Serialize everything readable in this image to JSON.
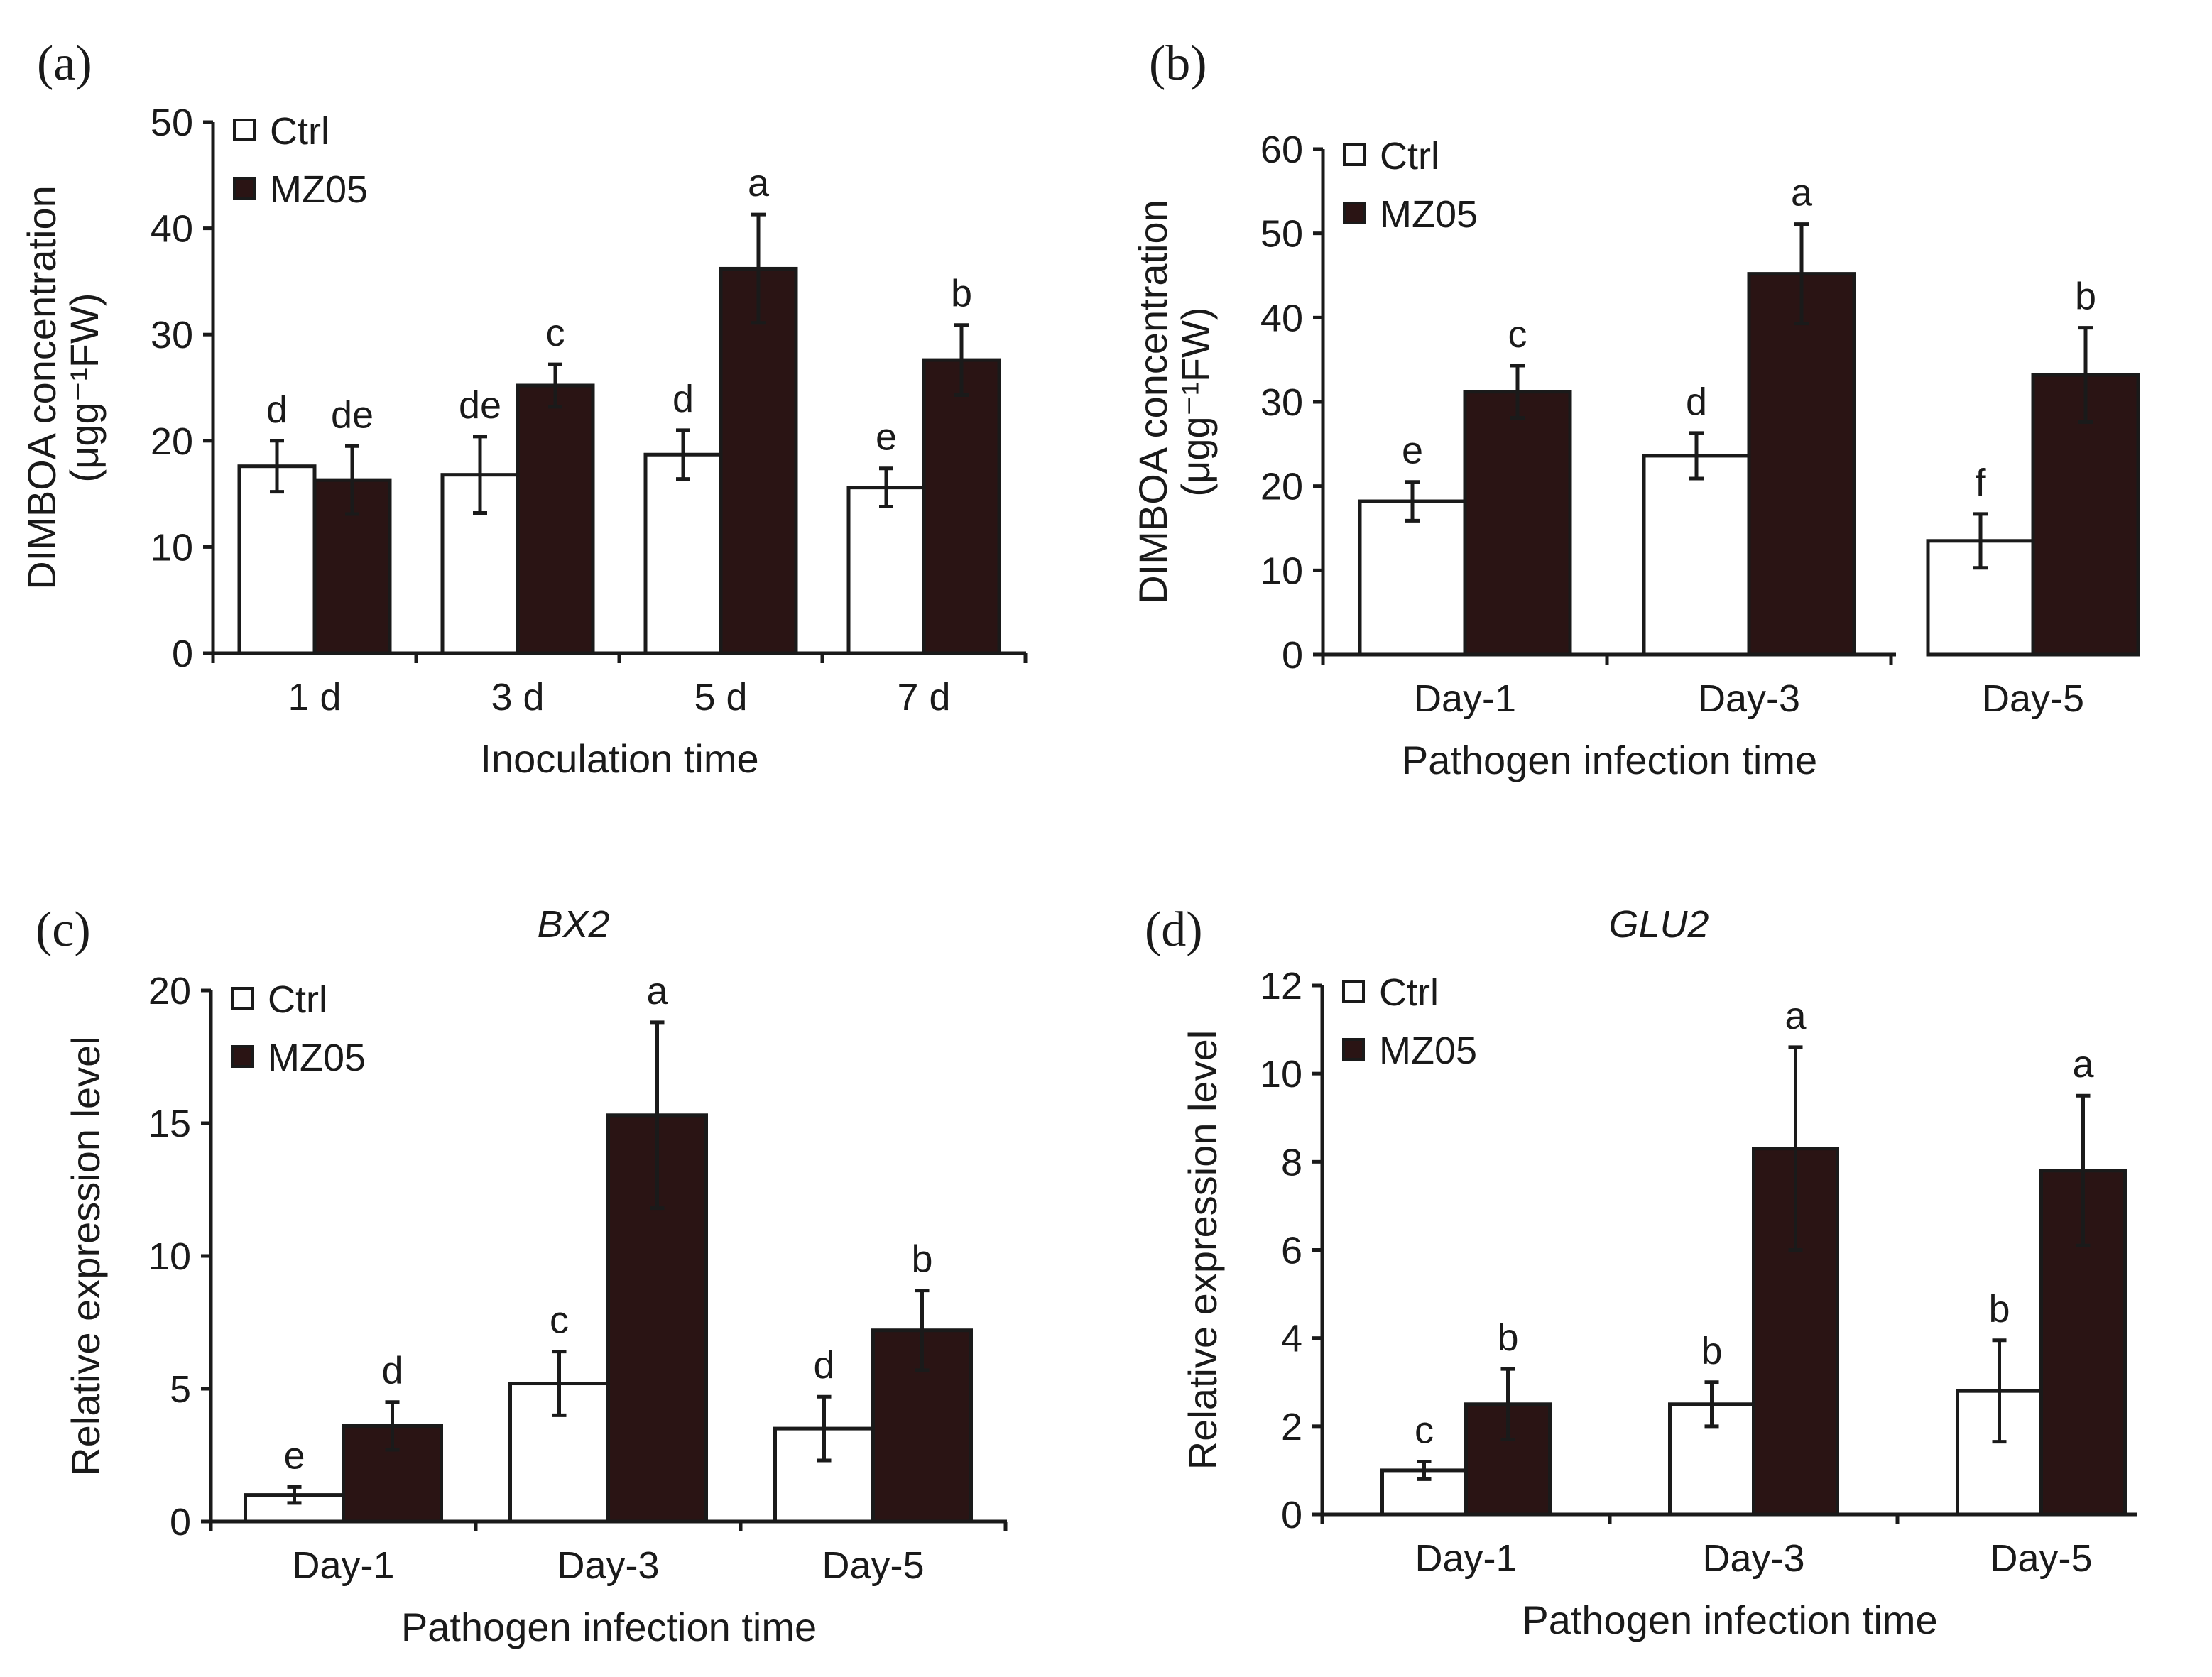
{
  "colors": {
    "ctrl": "#ffffff",
    "mz05": "#2a1414",
    "ink": "#1a1a1a"
  },
  "chart_data": [
    {
      "type": "bar",
      "panel_label": "(a)",
      "title": "",
      "ylabel_line1": "DIMBOA concentration",
      "ylabel_line2": "(μgg⁻¹FW)",
      "xlabel": "Inoculation time",
      "categories": [
        "1 d",
        "3 d",
        "5 d",
        "7 d"
      ],
      "ylim": [
        0,
        50
      ],
      "yticks": [
        0,
        10,
        20,
        30,
        40,
        50
      ],
      "legend_position": "top-left",
      "series": [
        {
          "name": "Ctrl",
          "key": "ctrl",
          "values": [
            17.6,
            16.8,
            18.7,
            15.6
          ],
          "errors": [
            2.4,
            3.6,
            2.3,
            1.8
          ],
          "letters": [
            "d",
            "de",
            "d",
            "e"
          ]
        },
        {
          "name": "MZ05",
          "key": "mz05",
          "values": [
            16.3,
            25.2,
            36.2,
            27.6
          ],
          "errors": [
            3.2,
            2.0,
            5.1,
            3.3
          ],
          "letters": [
            "de",
            "c",
            "a",
            "b"
          ]
        }
      ]
    },
    {
      "type": "bar",
      "panel_label": "(b)",
      "title": "",
      "ylabel_line1": "DIMBOA concentration",
      "ylabel_line2": "(μgg⁻¹FW)",
      "xlabel": "Pathogen infection time",
      "categories": [
        "Day-1",
        "Day-3",
        "Day-5"
      ],
      "ylim": [
        0,
        60
      ],
      "yticks": [
        0,
        10,
        20,
        30,
        40,
        50,
        60
      ],
      "legend_position": "top-left",
      "series": [
        {
          "name": "Ctrl",
          "key": "ctrl",
          "values": [
            18.2,
            23.6,
            13.5
          ],
          "errors": [
            2.3,
            2.7,
            3.2
          ],
          "letters": [
            "e",
            "d",
            "f"
          ]
        },
        {
          "name": "MZ05",
          "key": "mz05",
          "values": [
            31.2,
            45.2,
            33.2
          ],
          "errors": [
            3.1,
            5.9,
            5.6
          ],
          "letters": [
            "c",
            "a",
            "b"
          ]
        }
      ]
    },
    {
      "type": "bar",
      "panel_label": "(c)",
      "title": "BX2",
      "ylabel_line1": "Relative expression level",
      "ylabel_line2": "",
      "xlabel": "Pathogen infection time",
      "categories": [
        "Day-1",
        "Day-3",
        "Day-5"
      ],
      "ylim": [
        0,
        20
      ],
      "yticks": [
        0,
        5,
        10,
        15,
        20
      ],
      "legend_position": "top-left",
      "series": [
        {
          "name": "Ctrl",
          "key": "ctrl",
          "values": [
            1.0,
            5.2,
            3.5
          ],
          "errors": [
            0.3,
            1.2,
            1.2
          ],
          "letters": [
            "e",
            "c",
            "d"
          ]
        },
        {
          "name": "MZ05",
          "key": "mz05",
          "values": [
            3.6,
            15.3,
            7.2
          ],
          "errors": [
            0.9,
            3.5,
            1.5
          ],
          "letters": [
            "d",
            "a",
            "b"
          ]
        }
      ]
    },
    {
      "type": "bar",
      "panel_label": "(d)",
      "title": "GLU2",
      "ylabel_line1": "Relative expression level",
      "ylabel_line2": "",
      "xlabel": "Pathogen infection time",
      "categories": [
        "Day-1",
        "Day-3",
        "Day-5"
      ],
      "ylim": [
        0,
        12
      ],
      "yticks": [
        0,
        2,
        4,
        6,
        8,
        10,
        12
      ],
      "legend_position": "top-left",
      "series": [
        {
          "name": "Ctrl",
          "key": "ctrl",
          "values": [
            1.0,
            2.5,
            2.8
          ],
          "errors": [
            0.2,
            0.5,
            1.15
          ],
          "letters": [
            "c",
            "b",
            "b"
          ]
        },
        {
          "name": "MZ05",
          "key": "mz05",
          "values": [
            2.5,
            8.3,
            7.8
          ],
          "errors": [
            0.8,
            2.3,
            1.7
          ],
          "letters": [
            "b",
            "a",
            "a"
          ]
        }
      ]
    }
  ]
}
